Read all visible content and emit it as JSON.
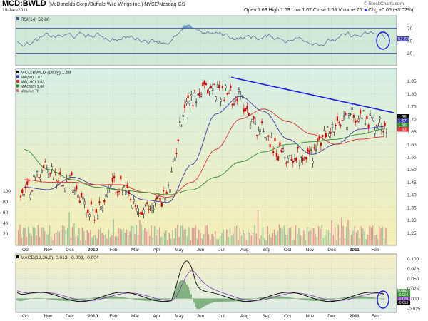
{
  "header": {
    "symbol": "MCD:BWLD",
    "subtitle": "(McDonalds Corp./Buffalo Wild Wings Inc.) NYSE/Nasdaq GS",
    "date": "19-Jan-2011",
    "quote": "Open 1.69  High 1.69  Low 1.67  Close 1.68  Volume 76",
    "change": "Chg +0.05 (+3.02%)",
    "change_arrow": "▲",
    "copyright": "© StockCharts.com"
  },
  "colors": {
    "up_candle": "#000000",
    "down_candle": "#dd0000",
    "ma50": "#3a3aa8",
    "ma100": "#e03030",
    "ma200": "#2e8b2e",
    "volume": "#d08080",
    "trendline": "#1a1ae6",
    "circle": "#1a1ae6",
    "rsi_line": "#4a5a9a",
    "macd_line": "#000000",
    "signal_line": "#7a3ab0"
  },
  "months": [
    "Oct",
    "Nov",
    "Dec",
    "2010",
    "Feb",
    "Mar",
    "Apr",
    "May",
    "Jun",
    "Jul",
    "Aug",
    "Sep",
    "Oct",
    "Nov",
    "Dec",
    "2011",
    "Feb"
  ],
  "rsi_panel": {
    "legend": "RSI(14) 52.80",
    "ticks": [
      "70",
      "50",
      "30"
    ],
    "current_label": "52.80",
    "current": 52.8,
    "range": [
      10,
      90
    ]
  },
  "price_panel": {
    "legend": [
      "MCD:BWLD (Daily) 1.68",
      "MA(50) 1.67",
      "MA(100) 1.63",
      "MA(200) 1.66",
      "Volume 76"
    ],
    "ticks": [
      "1.85",
      "1.80",
      "1.75",
      "1.70",
      "1.65",
      "1.60",
      "1.55",
      "1.50",
      "1.45",
      "1.40",
      "1.35",
      "1.30",
      "1.25"
    ],
    "value_labels": [
      "1.68",
      "1.67",
      "1.66",
      "1.63"
    ],
    "volume_ticks": [
      "100",
      "80",
      "60",
      "40",
      "20"
    ],
    "range": [
      1.2,
      1.9
    ]
  },
  "macd_panel": {
    "legend": "MACD(12,26,9) -0.013, -0.009, -0.004",
    "ticks": [
      "0.100",
      "0.075",
      "0.050",
      "0.025",
      "0.000",
      "-0.025"
    ],
    "current_labels": [
      "0.000",
      "-0.004",
      "-0.009",
      "-0.013"
    ],
    "range": [
      -0.035,
      0.112
    ]
  },
  "chart_data": {
    "type": "line",
    "title": "MCD:BWLD (McDonalds Corp./Buffalo Wild Wings Inc.) NYSE/Nasdaq GS",
    "x": [
      "2009-10",
      "2009-11",
      "2009-12",
      "2010-01",
      "2010-02",
      "2010-03",
      "2010-04",
      "2010-05",
      "2010-06",
      "2010-07",
      "2010-08",
      "2010-09",
      "2010-10",
      "2010-11",
      "2010-12",
      "2011-01"
    ],
    "ylim": [
      1.2,
      1.9
    ],
    "series": [
      {
        "name": "MCD:BWLD (Daily) 1.68",
        "values": [
          1.4,
          1.5,
          1.46,
          1.33,
          1.44,
          1.33,
          1.39,
          1.78,
          1.82,
          1.79,
          1.66,
          1.55,
          1.56,
          1.66,
          1.72,
          1.68
        ]
      },
      {
        "name": "MA(50) 1.67",
        "values": [
          1.43,
          1.42,
          1.47,
          1.44,
          1.42,
          1.38,
          1.37,
          1.52,
          1.72,
          1.79,
          1.73,
          1.62,
          1.56,
          1.6,
          1.66,
          1.67
        ]
      },
      {
        "name": "MA(100) 1.63",
        "values": [
          1.46,
          1.45,
          1.45,
          1.44,
          1.44,
          1.41,
          1.39,
          1.45,
          1.58,
          1.7,
          1.74,
          1.69,
          1.64,
          1.6,
          1.62,
          1.63
        ]
      },
      {
        "name": "MA(200) 1.66",
        "values": [
          1.58,
          1.5,
          1.46,
          1.43,
          1.42,
          1.41,
          1.4,
          1.42,
          1.47,
          1.53,
          1.57,
          1.6,
          1.61,
          1.62,
          1.64,
          1.66
        ]
      }
    ]
  }
}
